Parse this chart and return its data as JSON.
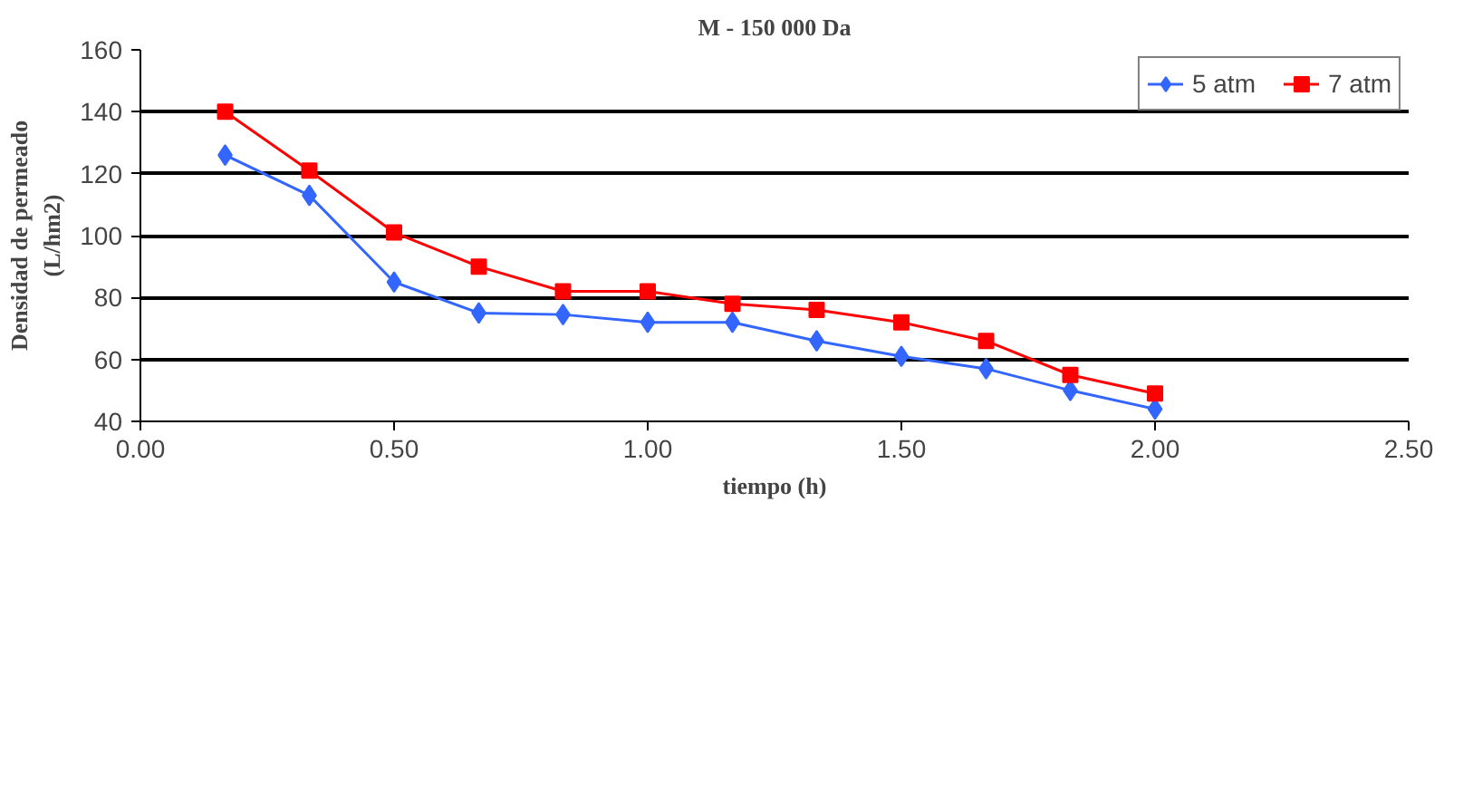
{
  "chart_data": {
    "type": "line",
    "title": "M - 150 000 Da",
    "xlabel": "tiempo (h)",
    "ylabel": "Densidad de permeado (L/hm2)",
    "xlim": [
      0,
      2.5
    ],
    "xticks": [
      {
        "value": 0,
        "label": "0.00"
      },
      {
        "value": 0.5,
        "label": "0.50"
      },
      {
        "value": 1,
        "label": "1.00"
      },
      {
        "value": 1.5,
        "label": "1.50"
      },
      {
        "value": 2,
        "label": "2.00"
      },
      {
        "value": 2.5,
        "label": "2.50"
      }
    ],
    "ylim": [
      40,
      160
    ],
    "yticks": [
      40,
      60,
      80,
      100,
      120,
      140,
      160
    ],
    "grid": "y",
    "legend": "top right",
    "x": [
      0.167,
      0.333,
      0.5,
      0.667,
      0.833,
      1.0,
      1.167,
      1.333,
      1.5,
      1.667,
      1.833,
      2.0
    ],
    "series": [
      {
        "name": "5 atm",
        "color": "#3366ff",
        "marker": "diamond",
        "values": [
          126,
          113,
          85,
          75,
          74.5,
          72,
          72,
          66,
          61,
          57,
          50,
          44
        ]
      },
      {
        "name": "7 atm",
        "color": "#ff0000",
        "marker": "square",
        "values": [
          140,
          121,
          101,
          90,
          82,
          82,
          78,
          76,
          72,
          66,
          55,
          49
        ]
      }
    ]
  }
}
